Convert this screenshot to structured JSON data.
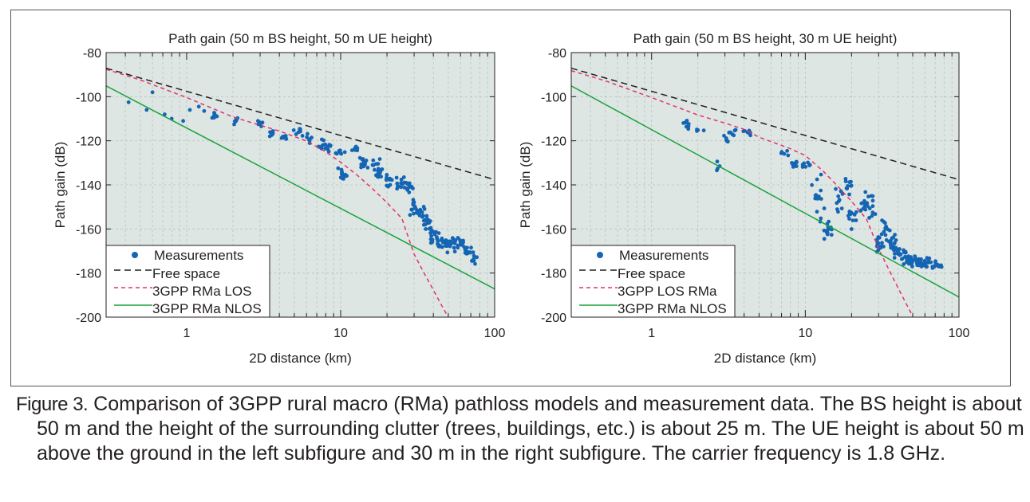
{
  "caption": {
    "label": "Figure 3.",
    "text": " Comparison of 3GPP rural macro (RMa) pathloss models and measurement data. The BS height is about 50 m and the height of the surrounding clutter (trees, buildings, etc.) is about 25 m. The UE height is about 50 m above the ground in the left subfigure and 30 m in the right subfigure. The carrier frequency is 1.8 GHz."
  },
  "colors": {
    "plot_background": "#dde6e2",
    "measurements": "#1565b5",
    "free_space": "#231f20",
    "los": "#e8306a",
    "nlos": "#1aa33c"
  },
  "chart_data": [
    {
      "type": "scatter",
      "title": "Path gain (50 m BS height, 50 m UE height)",
      "xlabel": "2D distance (km)",
      "ylabel": "Path gain (dB)",
      "x_scale": "log",
      "xlim": [
        0.3,
        100
      ],
      "ylim": [
        -200,
        -80
      ],
      "x_ticks": [
        1,
        10,
        100
      ],
      "x_tick_labels": [
        "1",
        "10",
        "100"
      ],
      "y_ticks": [
        -80,
        -100,
        -120,
        -140,
        -160,
        -180,
        -200
      ],
      "y_tick_labels": [
        "-80",
        "-100",
        "-120",
        "-140",
        "-160",
        "-180",
        "-200"
      ],
      "grid": true,
      "legend_position": "bottom-left",
      "series": [
        {
          "name": "Measurements",
          "kind": "scatter",
          "clusters": [
            [
              0.42,
              -102.5,
              1,
              1
            ],
            [
              0.55,
              -106,
              1,
              1
            ],
            [
              0.6,
              -98,
              1,
              1
            ],
            [
              0.72,
              -108,
              1,
              1
            ],
            [
              0.8,
              -110,
              1,
              1
            ],
            [
              0.95,
              -111,
              1,
              1
            ],
            [
              1.05,
              -106,
              1,
              1
            ],
            [
              1.2,
              -104.5,
              1,
              1
            ],
            [
              1.3,
              -106.5,
              1,
              1
            ],
            [
              1.5,
              -109,
              8,
              3
            ],
            [
              2.1,
              -111,
              8,
              2.5
            ],
            [
              3.0,
              -112.5,
              6,
              2
            ],
            [
              3.6,
              -116.5,
              7,
              2.5
            ],
            [
              4.3,
              -118.5,
              8,
              2.5
            ],
            [
              5.3,
              -116,
              8,
              2.5
            ],
            [
              6.2,
              -119,
              8,
              3
            ],
            [
              7.3,
              -121.5,
              8,
              3
            ],
            [
              8.6,
              -123,
              8,
              3
            ],
            [
              9.7,
              -125,
              8,
              3
            ],
            [
              10.3,
              -135,
              12,
              4
            ],
            [
              12.7,
              -124.5,
              8,
              3
            ],
            [
              14,
              -131,
              14,
              4
            ],
            [
              16.6,
              -130,
              8,
              4
            ],
            [
              18,
              -135,
              10,
              4
            ],
            [
              20.5,
              -137,
              10,
              4
            ],
            [
              24,
              -139,
              12,
              4
            ],
            [
              27.4,
              -140.5,
              14,
              5
            ],
            [
              30,
              -150,
              14,
              6
            ],
            [
              33,
              -153,
              14,
              6
            ],
            [
              37,
              -157,
              14,
              6
            ],
            [
              40,
              -163,
              12,
              6
            ],
            [
              44,
              -166,
              14,
              6
            ],
            [
              49,
              -167,
              14,
              6
            ],
            [
              55,
              -166,
              12,
              6
            ],
            [
              62,
              -168,
              12,
              6
            ],
            [
              69,
              -170,
              10,
              5
            ],
            [
              72,
              -174,
              6,
              3
            ]
          ]
        },
        {
          "name": "Free space",
          "kind": "line",
          "x": [
            0.3,
            100
          ],
          "y": [
            -87.1,
            -137.6
          ]
        },
        {
          "name": "3GPP RMa LOS",
          "kind": "line",
          "x": [
            0.3,
            0.5,
            1,
            2,
            4,
            6,
            8,
            10,
            13,
            16,
            20,
            25,
            30,
            35,
            40,
            45,
            50
          ],
          "y": [
            -87.6,
            -92.4,
            -100.4,
            -109.2,
            -115.6,
            -120.1,
            -125.0,
            -129.7,
            -136.0,
            -141.6,
            -148.1,
            -155.3,
            -171.5,
            -180.3,
            -187.7,
            -194.4,
            -200
          ]
        },
        {
          "name": "3GPP RMa NLOS",
          "kind": "line",
          "x": [
            0.3,
            100
          ],
          "y": [
            -95.1,
            -187.2
          ]
        }
      ]
    },
    {
      "type": "scatter",
      "title": "Path gain (50 m BS height, 30 m UE height)",
      "xlabel": "2D distance (km)",
      "ylabel": "Path gain (dB)",
      "x_scale": "log",
      "xlim": [
        0.3,
        100
      ],
      "ylim": [
        -200,
        -80
      ],
      "x_ticks": [
        1,
        10,
        100
      ],
      "x_tick_labels": [
        "1",
        "10",
        "100"
      ],
      "y_ticks": [
        -80,
        -100,
        -120,
        -140,
        -160,
        -180,
        -200
      ],
      "y_tick_labels": [
        "-80",
        "-100",
        "-120",
        "-140",
        "-160",
        "-180",
        "-200"
      ],
      "grid": true,
      "legend_position": "bottom-left",
      "series": [
        {
          "name": "Measurements",
          "kind": "scatter",
          "clusters": [
            [
              1.7,
              -112.5,
              8,
              3
            ],
            [
              2.1,
              -115,
              4,
              2
            ],
            [
              2.6,
              -132,
              4,
              4
            ],
            [
              3.0,
              -119,
              6,
              3
            ],
            [
              3.4,
              -116.5,
              6,
              2
            ],
            [
              4.3,
              -116.5,
              8,
              2.5
            ],
            [
              7.5,
              -126,
              5,
              2
            ],
            [
              8.5,
              -130,
              10,
              3
            ],
            [
              10.2,
              -131.5,
              8,
              3
            ],
            [
              12,
              -145,
              14,
              14
            ],
            [
              14,
              -161,
              16,
              12
            ],
            [
              16.6,
              -148,
              10,
              10
            ],
            [
              18.8,
              -140,
              10,
              7
            ],
            [
              20,
              -156,
              14,
              8
            ],
            [
              24,
              -149,
              14,
              8
            ],
            [
              27,
              -151,
              10,
              8
            ],
            [
              30,
              -167,
              16,
              8
            ],
            [
              33,
              -162,
              14,
              8
            ],
            [
              37,
              -165,
              14,
              7
            ],
            [
              40,
              -171,
              14,
              5
            ],
            [
              45,
              -173,
              14,
              5
            ],
            [
              50,
              -174.5,
              14,
              4
            ],
            [
              56,
              -175,
              14,
              4
            ],
            [
              62,
              -176,
              12,
              4
            ],
            [
              70,
              -176.5,
              10,
              3
            ],
            [
              77,
              -177,
              4,
              2
            ]
          ]
        },
        {
          "name": "Free space",
          "kind": "line",
          "x": [
            0.3,
            100
          ],
          "y": [
            -87.1,
            -137.6
          ]
        },
        {
          "name": "3GPP LOS RMa",
          "kind": "line",
          "x": [
            0.3,
            0.5,
            1,
            2,
            3,
            4,
            5,
            8,
            10,
            13,
            16,
            20,
            25,
            30,
            35,
            40,
            45,
            50
          ],
          "y": [
            -88.2,
            -92.8,
            -100.4,
            -108.3,
            -112.0,
            -114.8,
            -118.4,
            -123.6,
            -126.7,
            -133.6,
            -140.1,
            -147.5,
            -155.5,
            -169.0,
            -178.5,
            -186.5,
            -193.5,
            -199.5
          ]
        },
        {
          "name": "3GPP RMa NLOS",
          "kind": "line",
          "x": [
            0.3,
            100
          ],
          "y": [
            -95.1,
            -190.9
          ]
        }
      ]
    }
  ]
}
